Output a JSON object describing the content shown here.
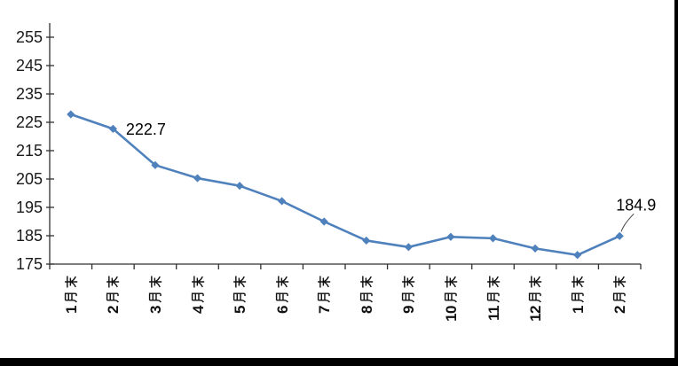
{
  "chart_data": {
    "type": "line",
    "title": "",
    "categories": [
      "1月末",
      "2月末",
      "3月末",
      "4月末",
      "5月末",
      "6月末",
      "7月末",
      "8月末",
      "9月末",
      "10月末",
      "11月末",
      "12月末",
      "1月末",
      "2月末"
    ],
    "series": [
      {
        "name": "",
        "values": [
          227.8,
          222.7,
          209.9,
          205.3,
          202.6,
          197.2,
          190.0,
          183.3,
          181.0,
          184.6,
          184.1,
          180.5,
          178.2,
          184.9
        ]
      }
    ],
    "ylim": [
      175,
      260
    ],
    "ytick_labels": [
      "255",
      "245",
      "235",
      "225",
      "215",
      "205",
      "195",
      "185",
      "175"
    ],
    "grid": false,
    "legend": "none",
    "line_color": "#4F81BD",
    "marker": "diamond",
    "axis_color": "#303030",
    "text_color": "#1a1a1a",
    "annotations": [
      {
        "point_index": 1,
        "label": "222.7",
        "placement": "right",
        "leader_line": false
      },
      {
        "point_index": 13,
        "label": "184.9",
        "placement": "above",
        "leader_line": true
      }
    ]
  },
  "frame": {
    "right_border_color": "#000000",
    "bottom_border_color": "#000000"
  }
}
